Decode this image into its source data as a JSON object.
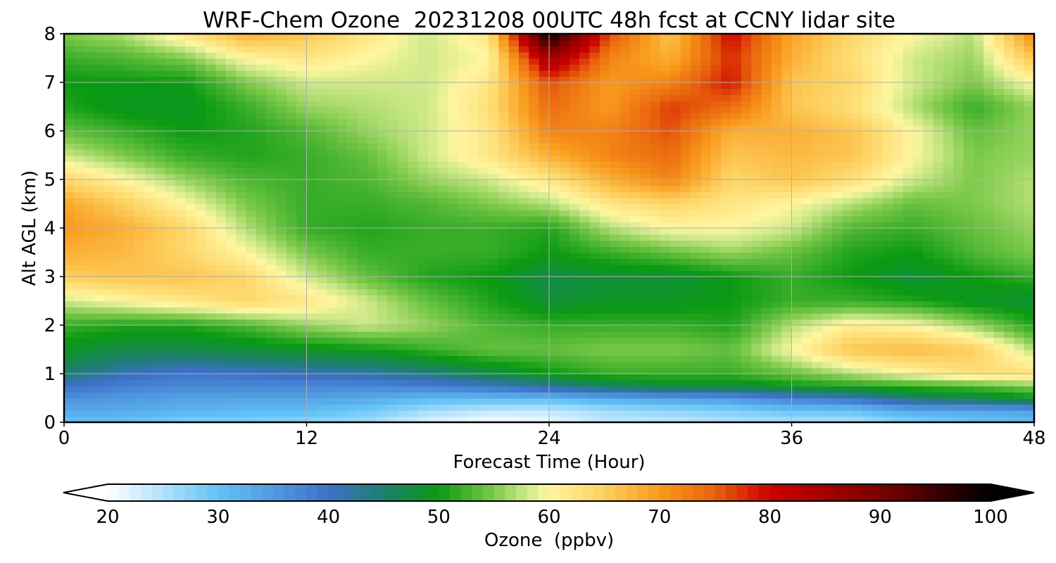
{
  "chart_data": {
    "type": "heatmap",
    "title": "WRF-Chem Ozone  20231208 00UTC 48h fcst at CCNY lidar site",
    "xlabel": "Forecast Time (Hour)",
    "ylabel": "Alt AGL (km)",
    "xlim": [
      0,
      48
    ],
    "ylim": [
      0,
      8
    ],
    "x_ticks": [
      "0",
      "12",
      "24",
      "36",
      "48"
    ],
    "x_tick_values": [
      0,
      12,
      24,
      36,
      48
    ],
    "y_ticks": [
      "0",
      "1",
      "2",
      "3",
      "4",
      "5",
      "6",
      "7",
      "8"
    ],
    "y_tick_values": [
      0,
      1,
      2,
      3,
      4,
      5,
      6,
      7,
      8
    ],
    "grid": true,
    "colorbar": {
      "label": "Ozone  (ppbv)",
      "range": [
        20,
        100
      ],
      "ticks": [
        "20",
        "30",
        "40",
        "50",
        "60",
        "70",
        "80",
        "90",
        "100"
      ],
      "tick_values": [
        20,
        30,
        40,
        50,
        60,
        70,
        80,
        90,
        100
      ],
      "extend": "both",
      "orientation": "horizontal"
    },
    "colors": {
      "20": "#ffffff",
      "30": "#63c3f7",
      "40": "#3d70c9",
      "45": "#1c7f6c",
      "50": "#0a9a12",
      "55": "#7cc94a",
      "58": "#cfe98a",
      "60": "#fff6a0",
      "65": "#fdcf5d",
      "70": "#f99a1c",
      "75": "#e8620c",
      "80": "#cc0000",
      "90": "#7a0000",
      "100": "#000000"
    },
    "grid_x": [
      0,
      3,
      6,
      9,
      12,
      15,
      18,
      21,
      24,
      27,
      30,
      33,
      36,
      39,
      42,
      45,
      48
    ],
    "grid_y": [
      0,
      0.25,
      0.5,
      0.75,
      1,
      1.5,
      2,
      2.5,
      3,
      3.5,
      4,
      4.5,
      5,
      5.5,
      6,
      6.5,
      7,
      7.5,
      8
    ],
    "values": [
      [
        30,
        30,
        28,
        28,
        27,
        26,
        22,
        20,
        21,
        24,
        24,
        25,
        25,
        25,
        28,
        30,
        31
      ],
      [
        33,
        33,
        32,
        31,
        31,
        29,
        26,
        24,
        24,
        26,
        27,
        28,
        30,
        30,
        33,
        33,
        34
      ],
      [
        36,
        35,
        34,
        34,
        34,
        33,
        31,
        31,
        31,
        33,
        34,
        35,
        38,
        40,
        45,
        47,
        50
      ],
      [
        40,
        38,
        37,
        37,
        37,
        37,
        38,
        40,
        43,
        46,
        48,
        48,
        50,
        51,
        52,
        53,
        55
      ],
      [
        45,
        41,
        39,
        40,
        41,
        42,
        44,
        47,
        50,
        52,
        52,
        52,
        54,
        57,
        60,
        63,
        63
      ],
      [
        49,
        47,
        47,
        48,
        49,
        50,
        52,
        54,
        54,
        55,
        55,
        54,
        60,
        66,
        67,
        65,
        57
      ],
      [
        52,
        51,
        51,
        53,
        56,
        58,
        56,
        53,
        52,
        52,
        52,
        51,
        57,
        61,
        60,
        56,
        51
      ],
      [
        58,
        60,
        62,
        64,
        62,
        58,
        54,
        51,
        48,
        49,
        49,
        50,
        52,
        52,
        51,
        49,
        48
      ],
      [
        65,
        66,
        66,
        64,
        58,
        54,
        51,
        50,
        47,
        48,
        48,
        50,
        52,
        50,
        48,
        50,
        52
      ],
      [
        68,
        67,
        64,
        60,
        55,
        52,
        52,
        52,
        50,
        52,
        54,
        56,
        54,
        51,
        50,
        53,
        55
      ],
      [
        70,
        68,
        64,
        57,
        52,
        51,
        52,
        52,
        51,
        57,
        60,
        60,
        58,
        53,
        52,
        54,
        56
      ],
      [
        69,
        65,
        60,
        55,
        52,
        52,
        53,
        55,
        57,
        62,
        64,
        62,
        60,
        57,
        54,
        55,
        57
      ],
      [
        64,
        60,
        56,
        53,
        52,
        53,
        56,
        58,
        62,
        68,
        72,
        64,
        66,
        63,
        58,
        55,
        57
      ],
      [
        58,
        55,
        52,
        51,
        52,
        54,
        58,
        62,
        68,
        72,
        74,
        66,
        67,
        66,
        60,
        55,
        56
      ],
      [
        54,
        52,
        50,
        51,
        53,
        56,
        58,
        62,
        72,
        72,
        76,
        68,
        68,
        66,
        60,
        54,
        56
      ],
      [
        51,
        49,
        49,
        52,
        56,
        57,
        58,
        63,
        74,
        70,
        77,
        74,
        66,
        63,
        57,
        52,
        56
      ],
      [
        50,
        50,
        50,
        55,
        58,
        58,
        58,
        62,
        76,
        70,
        72,
        79,
        66,
        64,
        58,
        55,
        60
      ],
      [
        52,
        53,
        55,
        60,
        62,
        60,
        58,
        60,
        85,
        72,
        68,
        78,
        68,
        63,
        58,
        56,
        66
      ],
      [
        55,
        57,
        62,
        68,
        66,
        62,
        58,
        62,
        100,
        76,
        66,
        80,
        69,
        64,
        60,
        57,
        72
      ]
    ]
  }
}
